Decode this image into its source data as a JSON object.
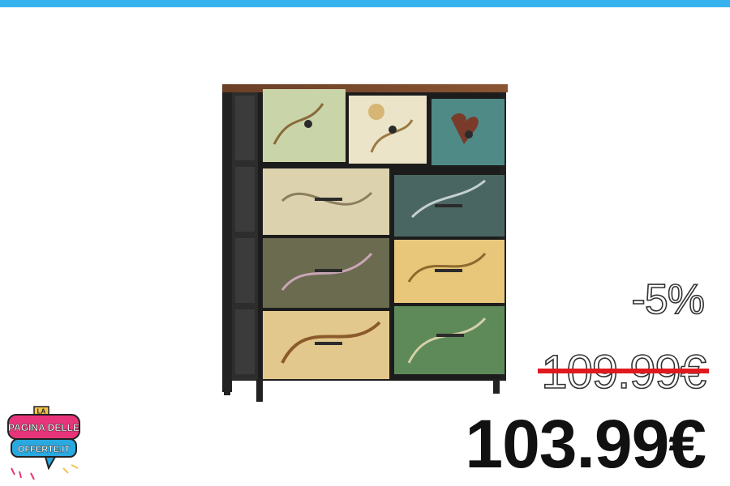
{
  "product": {
    "image_alt": "dresser-with-floral-fabric-drawers"
  },
  "pricing": {
    "discount": "-5%",
    "original_price": "109.99€",
    "sale_price": "103.99€"
  },
  "brand": {
    "line1": "LA",
    "line2": "PAGINA DELLE",
    "line3": "OFFERTE.IT"
  },
  "colors": {
    "accent_bar": "#36b3ef",
    "strike": "#e0191d",
    "logo_pink": "#e8347a",
    "logo_blue": "#2aa8e0"
  }
}
